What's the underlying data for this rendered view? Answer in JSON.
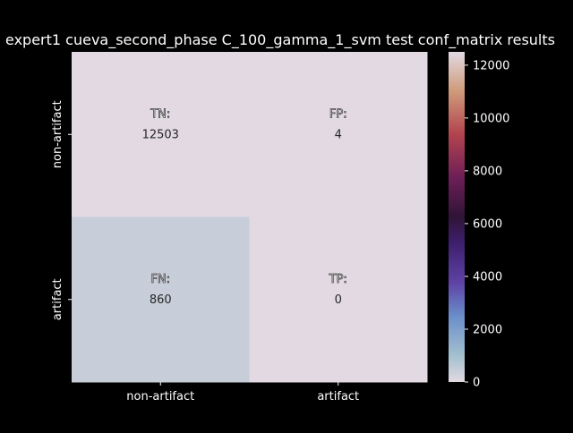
{
  "chart_data": {
    "type": "heatmap",
    "title": "expert1 cueva_second_phase C_100_gamma_1_svm test conf_matrix results",
    "row_labels": [
      "non-artifact",
      "artifact"
    ],
    "col_labels": [
      "non-artifact",
      "artifact"
    ],
    "values": [
      [
        12503,
        4
      ],
      [
        860,
        0
      ]
    ],
    "cell_tags": [
      [
        "TN:",
        "FP:"
      ],
      [
        "FN:",
        "TP:"
      ]
    ],
    "colorbar": {
      "colormap": "twilight-like",
      "vmin": 0,
      "vmax": 12503,
      "ticks": [
        0,
        2000,
        4000,
        6000,
        8000,
        10000,
        12000
      ]
    },
    "colors": {
      "background": "#000000",
      "text": "#ffffff",
      "cell_text": "#262626"
    }
  }
}
